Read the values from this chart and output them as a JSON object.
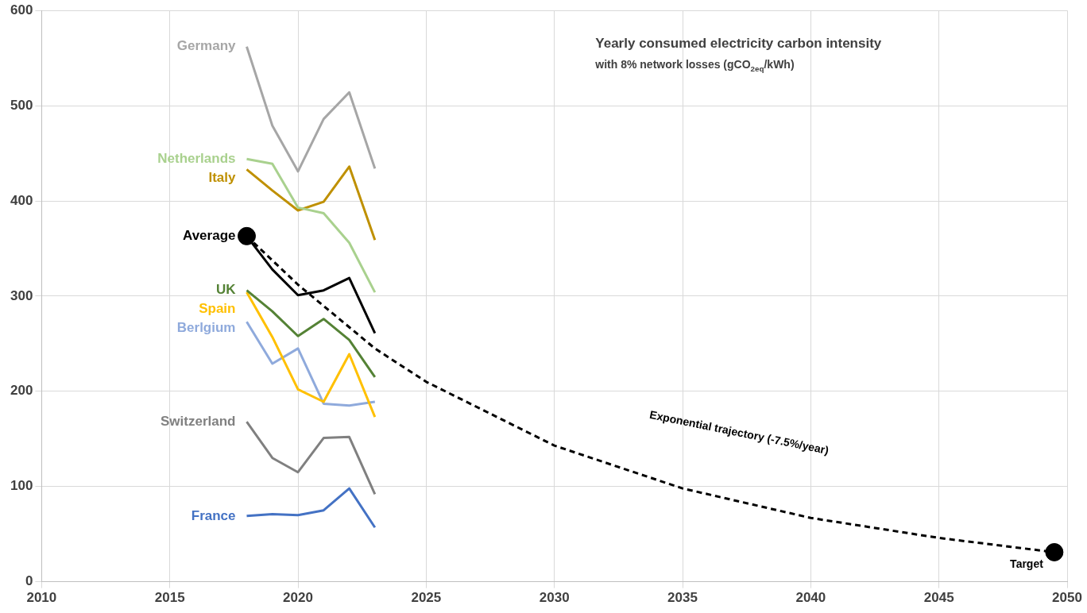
{
  "chart_data": {
    "type": "line",
    "title": "Yearly consumed electricity carbon intensity",
    "subtitle": "with 8% network losses (gCO$_{2eq}$/kWh)",
    "x": [
      2018,
      2019,
      2020,
      2021,
      2022,
      2023
    ],
    "series": [
      {
        "name": "Germany",
        "color": "#a6a6a6",
        "values": [
          562,
          479,
          431,
          486,
          514,
          434
        ]
      },
      {
        "name": "Netherlands",
        "color": "#a9d18e",
        "values": [
          444,
          439,
          393,
          387,
          356,
          304
        ]
      },
      {
        "name": "Italy",
        "color": "#bf9000",
        "values": [
          433,
          411,
          390,
          399,
          436,
          359
        ]
      },
      {
        "name": "Average",
        "color": "#000000",
        "values": [
          363,
          328,
          301,
          306,
          319,
          261
        ]
      },
      {
        "name": "UK",
        "color": "#548235",
        "values": [
          306,
          284,
          258,
          276,
          254,
          215
        ]
      },
      {
        "name": "Spain",
        "color": "#ffc000",
        "values": [
          304,
          257,
          202,
          189,
          239,
          173
        ]
      },
      {
        "name": "Berlgium",
        "color": "#8faadc",
        "values": [
          273,
          229,
          245,
          187,
          185,
          189
        ]
      },
      {
        "name": "Switzerland",
        "color": "#808080",
        "values": [
          168,
          130,
          115,
          151,
          152,
          92
        ]
      },
      {
        "name": "France",
        "color": "#4472c4",
        "values": [
          69,
          71,
          70,
          75,
          98,
          57
        ]
      },
      {
        "type": "line",
        "line_style": "dashed",
        "color": "#000000",
        "x": [
          2018,
          2020,
          2023,
          2025,
          2030,
          2035,
          2040,
          2045,
          2049.5
        ],
        "values": [
          363,
          312,
          245,
          210,
          143,
          98,
          67,
          46,
          31
        ]
      },
      {
        "type": "scatter",
        "marker": "circle",
        "color": "#000000",
        "x": [
          2018,
          2049.5
        ],
        "values": [
          363,
          31
        ]
      }
    ],
    "xlim": [
      2010,
      2050
    ],
    "xticks": [
      2010,
      2015,
      2020,
      2025,
      2030,
      2035,
      2040,
      2045,
      2050
    ],
    "ylim": [
      0,
      600
    ],
    "yticks": [
      0,
      100,
      200,
      300,
      400,
      500,
      600
    ],
    "grid": true,
    "legend": false,
    "marker": "none",
    "line_style": "solid",
    "annotations": [
      "Exponential trajectory (-7.5%/year)",
      {
        "text": "Target",
        "x": 2049.5,
        "y": 31
      }
    ]
  }
}
